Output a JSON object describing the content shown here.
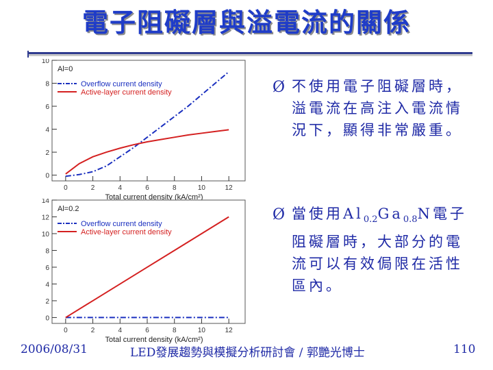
{
  "slide": {
    "title": "電子阻礙層與溢電流的關係",
    "bullets": [
      {
        "marker": "Ø",
        "text": "不使用電子阻礙層時，溢電流在高注入電流情況下，顯得非常嚴重。"
      },
      {
        "marker": "Ø",
        "text_parts": [
          "當使用Al",
          "0.2",
          "Ga",
          "0.8",
          "N電子阻礙層時，大部分的電流可以有效侷限在活性區內。"
        ]
      }
    ],
    "footer": {
      "date": "2006/08/31",
      "center": "LED發展趨勢與模擬分析研討會 / 郭艷光博士",
      "page": "110"
    }
  },
  "colors": {
    "title": "#1f3cc8",
    "text": "#1f2aa6",
    "overflow": "#1a2fbf",
    "active": "#d42020"
  },
  "chart_data": [
    {
      "type": "line",
      "annotation": "Al=0",
      "xlabel": "Total current density (kA/cm²)",
      "ylabel": "",
      "xlim": [
        -1,
        13.2
      ],
      "ylim": [
        -0.5,
        10
      ],
      "xticks": [
        0,
        2,
        4,
        6,
        8,
        10,
        12
      ],
      "yticks": [
        0,
        2,
        4,
        6,
        8,
        10
      ],
      "series": [
        {
          "name": "Overflow current density",
          "style": "dash-dot",
          "color": "#1a2fbf",
          "x": [
            0,
            1,
            2,
            3,
            4,
            5,
            6,
            7,
            8,
            9,
            10,
            11,
            12
          ],
          "y": [
            -0.1,
            0.05,
            0.3,
            0.8,
            1.6,
            2.4,
            3.3,
            4.2,
            5.1,
            6.0,
            7.0,
            8.0,
            9.0
          ]
        },
        {
          "name": "Active-layer current density",
          "style": "solid",
          "color": "#d42020",
          "x": [
            0,
            1,
            2,
            3,
            4,
            5,
            6,
            7,
            8,
            9,
            10,
            11,
            12
          ],
          "y": [
            0.1,
            1.0,
            1.6,
            2.0,
            2.35,
            2.65,
            2.9,
            3.1,
            3.3,
            3.5,
            3.65,
            3.8,
            3.95
          ]
        }
      ]
    },
    {
      "type": "line",
      "annotation": "Al=0.2",
      "xlabel": "Total current density (kA/cm²)",
      "ylabel": "",
      "xlim": [
        -1,
        13.2
      ],
      "ylim": [
        -0.7,
        14
      ],
      "xticks": [
        0,
        2,
        4,
        6,
        8,
        10,
        12
      ],
      "yticks": [
        0,
        2,
        4,
        6,
        8,
        10,
        12,
        14
      ],
      "series": [
        {
          "name": "Overflow current density",
          "style": "dash-dot",
          "color": "#1a2fbf",
          "x": [
            0,
            2,
            4,
            6,
            8,
            10,
            12
          ],
          "y": [
            0.0,
            0.0,
            0.0,
            0.0,
            0.0,
            0.0,
            0.0
          ]
        },
        {
          "name": "Active-layer current density",
          "style": "solid",
          "color": "#d42020",
          "x": [
            0,
            2,
            4,
            6,
            8,
            10,
            12
          ],
          "y": [
            0.0,
            2.0,
            4.0,
            6.0,
            8.0,
            10.0,
            12.0
          ]
        }
      ]
    }
  ]
}
